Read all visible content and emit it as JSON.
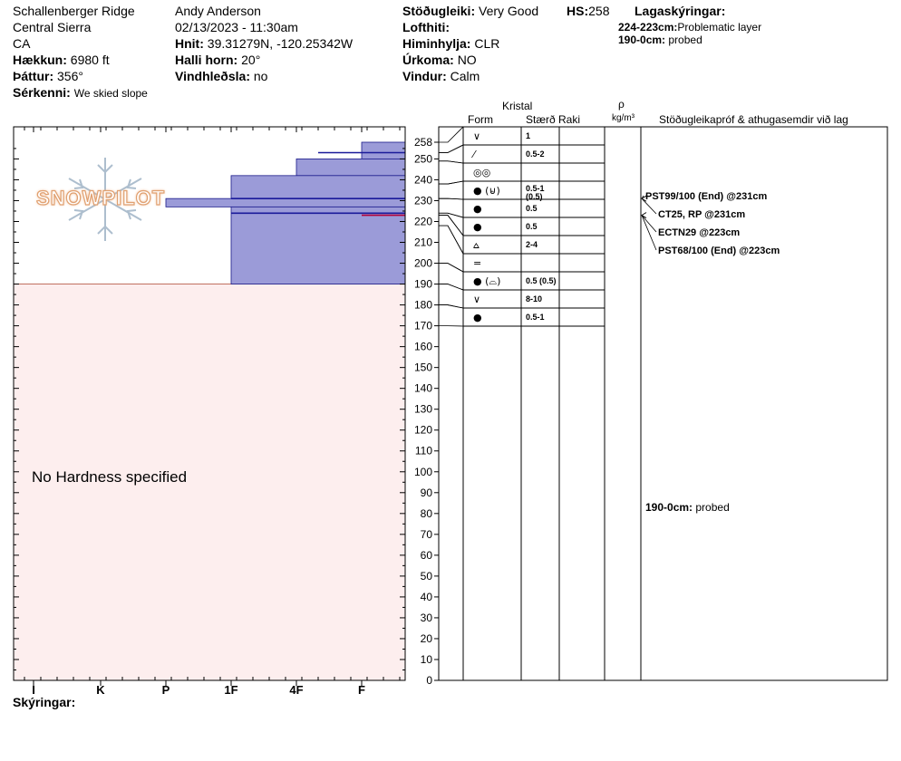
{
  "header": {
    "location": "Schallenberger Ridge",
    "range": "Central Sierra",
    "state": "CA",
    "elevation_label": "Hækkun:",
    "elevation": "6980 ft",
    "aspect_label": "Þáttur:",
    "aspect": "356°",
    "features_label": "Sérkenni:",
    "features": "We skied slope",
    "observer": "Andy Anderson",
    "datetime": "02/13/2023 - 11:30am",
    "coords_label": "Hnit:",
    "coords": "39.31279N, -120.25342W",
    "slope_label": "Halli horn:",
    "slope": "20°",
    "wind_loading_label": "Vindhleðsla:",
    "wind_loading": "no",
    "stability_label": "Stöðugleiki:",
    "stability": "Very Good",
    "hs_label": "HS:",
    "hs": "258",
    "air_temp_label": "Lofthiti:",
    "sky_label": "Himinhylja:",
    "sky": "CLR",
    "precip_label": "Úrkoma:",
    "precip": "NO",
    "wind_label": "Vindur:",
    "wind": "Calm",
    "layer_notes_title": "Lagaskýringar:",
    "layer_notes": [
      {
        "range": "224-223cm:",
        "text": "Problematic layer"
      },
      {
        "range": "190-0cm:",
        "text": "probed"
      }
    ]
  },
  "logo_text": "SNOWPILOT",
  "table_headers": {
    "crystal": "Kristal",
    "form": "Form",
    "size": "Stærð",
    "moisture": "Raki",
    "rho": "ρ",
    "density_unit": "kg/m³",
    "tests": "Stöðugleikapróf & athugasemdir við lag"
  },
  "chart_data": {
    "type": "snow-profile",
    "y_axis_ticks": [
      258,
      250,
      240,
      230,
      220,
      210,
      200,
      190,
      180,
      170,
      160,
      150,
      140,
      130,
      120,
      110,
      100,
      90,
      80,
      70,
      60,
      50,
      40,
      30,
      20,
      10,
      0
    ],
    "ylim": [
      0,
      258
    ],
    "hardness_ticks": [
      "I",
      "K",
      "P",
      "1F",
      "4F",
      "F"
    ],
    "no_hardness_text": "No Hardness specified",
    "hardness_layers": [
      {
        "top": 258,
        "bottom": 250,
        "hardness": "F"
      },
      {
        "top": 250,
        "bottom": 242,
        "hardness": "4F"
      },
      {
        "top": 242,
        "bottom": 231,
        "hardness": "1F"
      },
      {
        "top": 231,
        "bottom": 227,
        "hardness": "P"
      },
      {
        "top": 227,
        "bottom": 190,
        "hardness": "1F"
      }
    ],
    "layer_lines": [
      {
        "depth": 253,
        "color": "#1a1a9a"
      },
      {
        "depth": 231,
        "color": "#1a1a9a"
      },
      {
        "depth": 224,
        "color": "#1a1a9a"
      },
      {
        "depth": 223,
        "color": "#b0003a"
      }
    ],
    "layers": [
      {
        "top": 258,
        "bottom": 253,
        "form": "∨",
        "size": "1"
      },
      {
        "top": 253,
        "bottom": 249,
        "form": "⁄",
        "size": "0.5-2"
      },
      {
        "top": 249,
        "bottom": 238,
        "form": "◎◎",
        "size": ""
      },
      {
        "top": 238,
        "bottom": 231,
        "form": "● (⊌)",
        "size": "0.5-1",
        "size2": "(0.5)"
      },
      {
        "top": 231,
        "bottom": 224,
        "form": "●",
        "size": "0.5"
      },
      {
        "top": 224,
        "bottom": 223,
        "form": "●",
        "size": "0.5"
      },
      {
        "top": 223,
        "bottom": 218,
        "form": "⩟",
        "size": "2-4"
      },
      {
        "top": 218,
        "bottom": 200,
        "form": "=",
        "size": ""
      },
      {
        "top": 200,
        "bottom": 190,
        "form": "● (⌓)",
        "size": "0.5 (0.5)"
      },
      {
        "top": 190,
        "bottom": 180,
        "form": "∨",
        "size": "8-10"
      },
      {
        "top": 180,
        "bottom": 170,
        "form": "●",
        "size": "0.5-1"
      }
    ],
    "tests": [
      {
        "label": "PST99/100 (End) @231cm"
      },
      {
        "label": "CT25, RP @231cm"
      },
      {
        "label": "ECTN29 @223cm"
      },
      {
        "label": "PST68/100 (End) @223cm"
      }
    ],
    "probed_note": {
      "range": "190-0cm:",
      "text": "probed"
    }
  },
  "footer": {
    "notes_label": "Skýringar:"
  },
  "colors": {
    "hardness_fill": "#9b9bd8",
    "hardness_stroke": "#1a1a8a",
    "unknown_fill": "#fdeeee",
    "unknown_stroke": "#c07060"
  }
}
